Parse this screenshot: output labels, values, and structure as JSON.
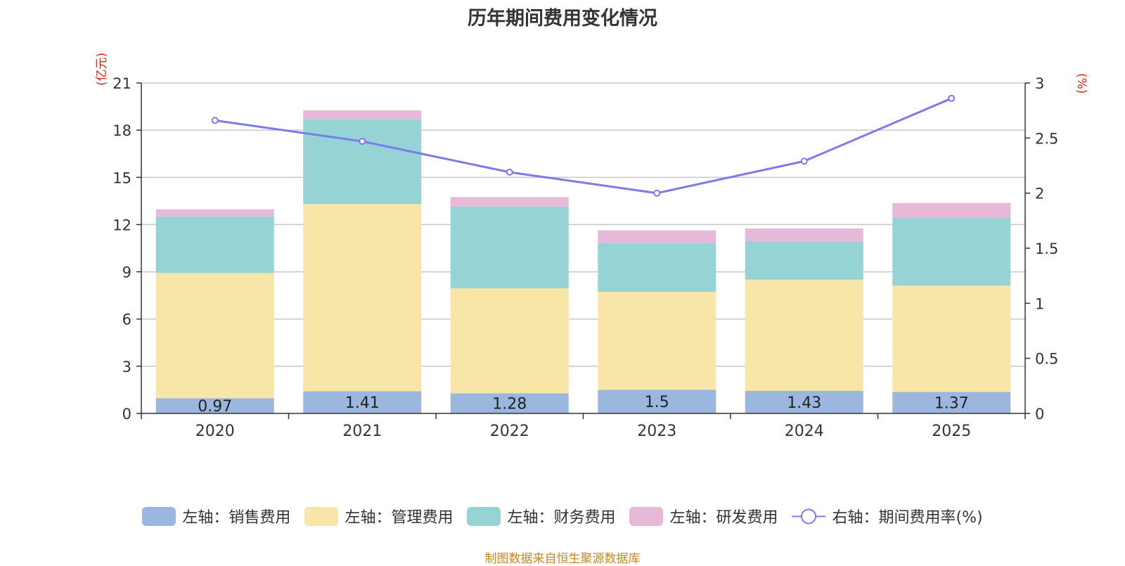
{
  "chart_data": {
    "type": "bar",
    "stacked": true,
    "title": "历年期间费用变化情况",
    "categories": [
      "2020",
      "2021",
      "2022",
      "2023",
      "2024",
      "2025"
    ],
    "left_axis": {
      "unit": "(亿元)",
      "ylim": [
        0,
        21
      ],
      "ticks": [
        0,
        3,
        6,
        9,
        12,
        15,
        18,
        21
      ]
    },
    "right_axis": {
      "unit": "(%)",
      "ylim": [
        0,
        3
      ],
      "ticks": [
        "0",
        "0.5",
        "1",
        "1.5",
        "2",
        "2.5",
        "3"
      ]
    },
    "series": [
      {
        "name": "左轴：销售费用",
        "axis": "left",
        "type": "bar",
        "color": "#9bb7e0",
        "values": [
          0.97,
          1.41,
          1.28,
          1.5,
          1.43,
          1.37
        ],
        "labels": [
          "0.97",
          "1.41",
          "1.28",
          "1.5",
          "1.43",
          "1.37"
        ]
      },
      {
        "name": "左轴：管理费用",
        "axis": "left",
        "type": "bar",
        "color": "#f8e6a8",
        "values": [
          7.95,
          11.9,
          6.67,
          6.23,
          7.07,
          6.75
        ]
      },
      {
        "name": "左轴：财务费用",
        "axis": "left",
        "type": "bar",
        "color": "#96d3d5",
        "values": [
          3.6,
          5.4,
          5.2,
          3.1,
          2.4,
          4.3
        ]
      },
      {
        "name": "左轴：研发费用",
        "axis": "left",
        "type": "bar",
        "color": "#e8b8d8",
        "values": [
          0.45,
          0.55,
          0.6,
          0.8,
          0.85,
          0.95
        ]
      },
      {
        "name": "右轴：期间费用率(%)",
        "axis": "right",
        "type": "line",
        "color": "#7b7bea",
        "values": [
          2.66,
          2.47,
          2.19,
          2.0,
          2.29,
          2.86
        ]
      }
    ],
    "grid": true,
    "legend_position": "bottom"
  },
  "source": "制图数据来自恒生聚源数据库"
}
